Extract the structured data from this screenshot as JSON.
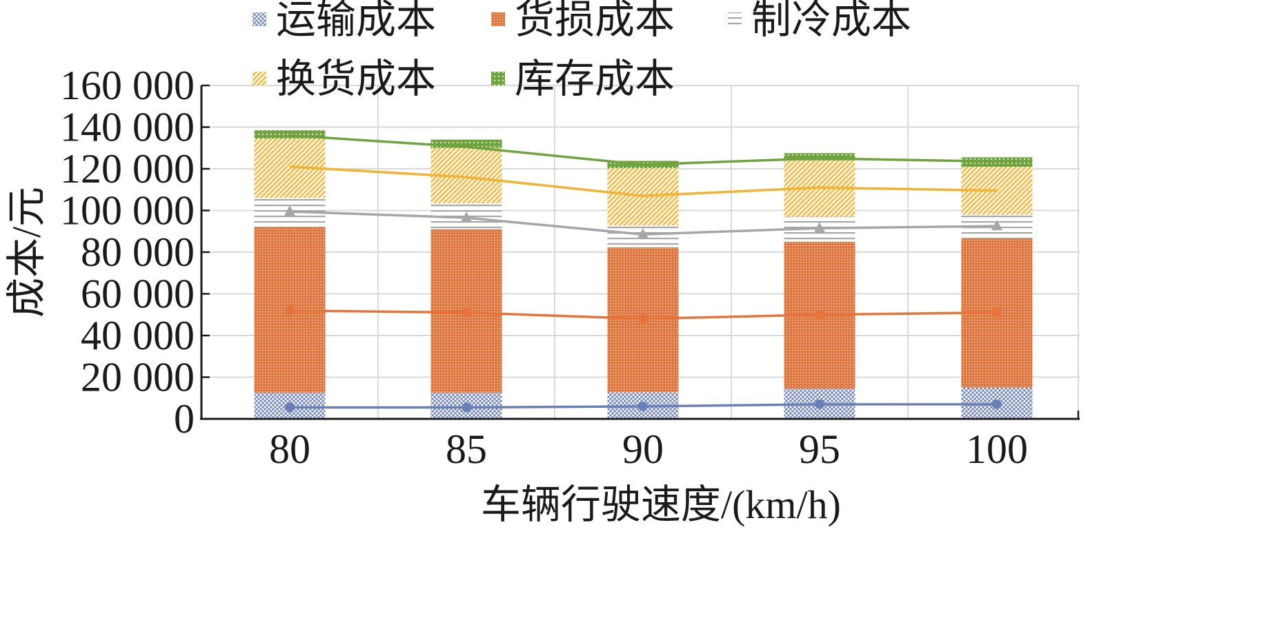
{
  "chart_data": {
    "type": "bar",
    "stacked": true,
    "categories": [
      "80",
      "85",
      "90",
      "95",
      "100"
    ],
    "xlabel": "车辆行驶速度/(km/h)",
    "ylabel": "成本/元",
    "ylim": [
      0,
      160000
    ],
    "yticks": [
      0,
      20000,
      40000,
      60000,
      80000,
      100000,
      120000,
      140000,
      160000
    ],
    "ytick_labels": [
      "0",
      "20 000",
      "40 000",
      "60 000",
      "80 000",
      "100 000",
      "120 000",
      "140 000",
      "160 000"
    ],
    "grid": true,
    "legend_position": "top",
    "series": [
      {
        "name": "运输成本",
        "color": "#6a7fb8",
        "pattern": "diag-cross",
        "values": [
          12500,
          12500,
          12800,
          14500,
          15000
        ]
      },
      {
        "name": "货损成本",
        "color": "#e8733a",
        "pattern": "dense-dots",
        "values": [
          79500,
          78500,
          69500,
          70500,
          71500
        ]
      },
      {
        "name": "制冷成本",
        "color": "#a6a6a6",
        "pattern": "horizontal",
        "values": [
          14000,
          12500,
          10500,
          12000,
          11500
        ]
      },
      {
        "name": "换货成本",
        "color": "#f2b233",
        "pattern": "diagonal",
        "values": [
          28500,
          26500,
          27500,
          27000,
          23000
        ]
      },
      {
        "name": "库存成本",
        "color": "#6fa33e",
        "pattern": "dots",
        "values": [
          4000,
          4000,
          3500,
          3500,
          4500
        ]
      }
    ],
    "overlay_lines": [
      {
        "color": "#6a7fb8",
        "marker": "circle",
        "values": [
          5500,
          5500,
          6000,
          7000,
          7000
        ]
      },
      {
        "color": "#e8733a",
        "marker": "circle",
        "values": [
          52000,
          51000,
          48000,
          50000,
          51000
        ]
      },
      {
        "color": "#a6a6a6",
        "marker": "triangle",
        "values": [
          99500,
          96500,
          88500,
          91500,
          92500
        ]
      },
      {
        "color": "#f2b233",
        "marker": "none",
        "values": [
          121000,
          116000,
          107000,
          111000,
          109500
        ]
      },
      {
        "color": "#6fa33e",
        "marker": "none",
        "values": [
          136000,
          130500,
          122000,
          125000,
          123500
        ]
      }
    ]
  }
}
